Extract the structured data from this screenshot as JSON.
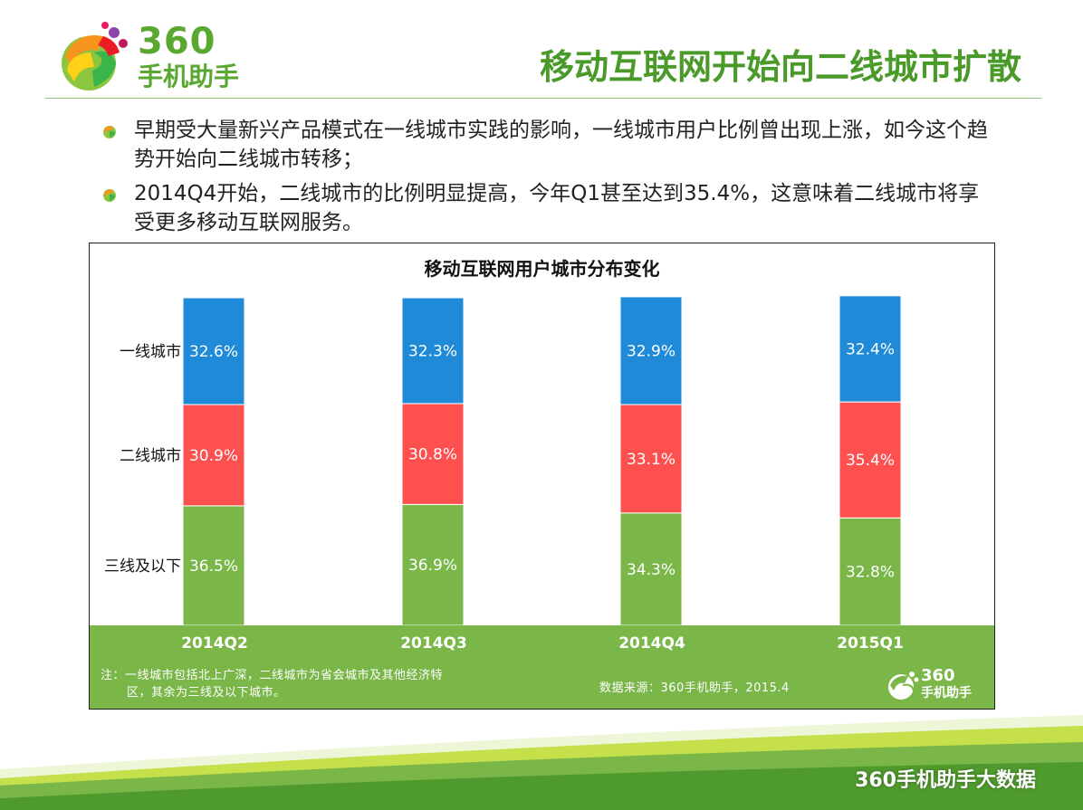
{
  "header": {
    "logo_number": "360",
    "logo_name": "手机助手",
    "title": "移动互联网开始向二线城市扩散"
  },
  "bullets": [
    {
      "text": "早期受大量新兴产品模式在一线城市实践的影响，一线城市用户比例曾出现上涨，如今这个趋势开始向二线城市转移；"
    },
    {
      "text": "2014Q4开始，二线城市的比例明显提高，今年Q1甚至达到35.4%，这意味着二线城市将享受更多移动互联网服务。"
    }
  ],
  "chart_data": {
    "type": "bar",
    "stacked": true,
    "title": "移动互联网用户城市分布变化",
    "categories": [
      "2014Q2",
      "2014Q3",
      "2014Q4",
      "2015Q1"
    ],
    "series": [
      {
        "name": "三线及以下",
        "values": [
          36.5,
          36.9,
          34.3,
          32.8
        ],
        "labels": [
          "36.5%",
          "36.9%",
          "34.3%",
          "32.8%"
        ],
        "color": "#7ab648"
      },
      {
        "name": "二线城市",
        "values": [
          30.9,
          30.8,
          33.1,
          35.4
        ],
        "labels": [
          "30.9%",
          "30.8%",
          "33.1%",
          "35.4%"
        ],
        "color": "#ff5050"
      },
      {
        "name": "一线城市",
        "values": [
          32.6,
          32.3,
          32.9,
          32.4
        ],
        "labels": [
          "32.6%",
          "32.3%",
          "32.9%",
          "32.4%"
        ],
        "color": "#1f8ad8"
      }
    ],
    "ylim": [
      0,
      100
    ]
  },
  "chart_footer": {
    "note_line1": "注：一线城市包括北上广深，二线城市为省会城市及其他经济特",
    "note_line2": "区，其余为三线及以下城市。",
    "source": "数据来源：360手机助手，2015.4",
    "logo_number": "360",
    "logo_name": "手机助手"
  },
  "watermark": "360手机助手大数据",
  "colors": {
    "brand_green": "#5aa832",
    "title_green": "#4a9a2a",
    "band_green": "#7ab648",
    "blue": "#1f8ad8",
    "red": "#ff5050"
  }
}
